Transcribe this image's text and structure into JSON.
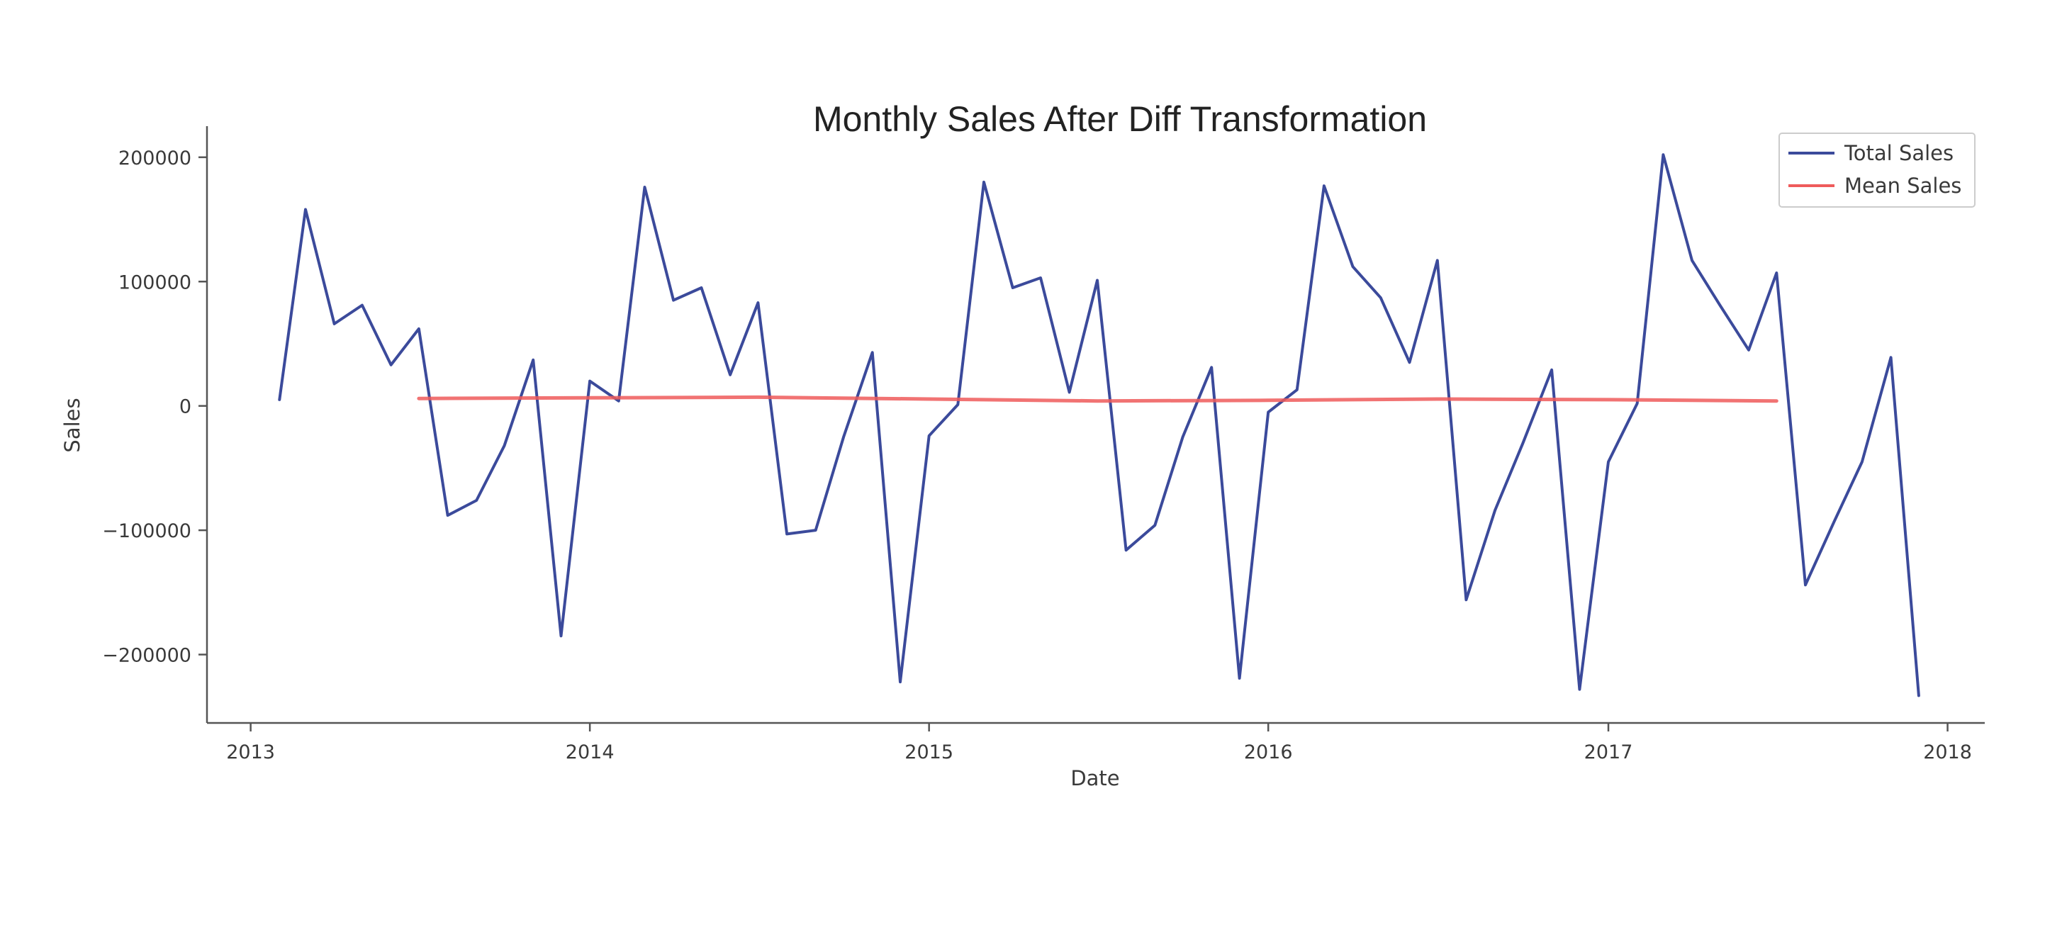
{
  "chart_data": {
    "type": "line",
    "title": "Monthly Sales After Diff Transformation",
    "xlabel": "Date",
    "ylabel": "Sales",
    "x_ticks": [
      "2013",
      "2014",
      "2015",
      "2016",
      "2017",
      "2018"
    ],
    "y_ticks": [
      "200000",
      "100000",
      "0",
      "−100000",
      "−200000"
    ],
    "y_tick_values": [
      200000,
      100000,
      0,
      -100000,
      -200000
    ],
    "ylim": [
      -255000,
      225000
    ],
    "xlim": [
      "2012-11-15",
      "2018-02-10"
    ],
    "grid": false,
    "legend_position": "top-right",
    "series": [
      {
        "name": "Total Sales",
        "color": "#3b4a9b",
        "points": [
          [
            "2013-02-01",
            5000
          ],
          [
            "2013-03-01",
            158000
          ],
          [
            "2013-04-01",
            66000
          ],
          [
            "2013-05-01",
            81000
          ],
          [
            "2013-06-01",
            33000
          ],
          [
            "2013-07-01",
            62000
          ],
          [
            "2013-08-01",
            -88000
          ],
          [
            "2013-09-01",
            -76000
          ],
          [
            "2013-10-01",
            -32000
          ],
          [
            "2013-11-01",
            37000
          ],
          [
            "2013-12-01",
            -185000
          ],
          [
            "2014-01-01",
            20000
          ],
          [
            "2014-02-01",
            4000
          ],
          [
            "2014-03-01",
            176000
          ],
          [
            "2014-04-01",
            85000
          ],
          [
            "2014-05-01",
            95000
          ],
          [
            "2014-06-01",
            25000
          ],
          [
            "2014-07-01",
            83000
          ],
          [
            "2014-08-01",
            -103000
          ],
          [
            "2014-09-01",
            -100000
          ],
          [
            "2014-10-01",
            -25000
          ],
          [
            "2014-11-01",
            43000
          ],
          [
            "2014-12-01",
            -222000
          ],
          [
            "2015-01-01",
            -24000
          ],
          [
            "2015-02-01",
            1000
          ],
          [
            "2015-03-01",
            180000
          ],
          [
            "2015-04-01",
            95000
          ],
          [
            "2015-05-01",
            103000
          ],
          [
            "2015-06-01",
            11000
          ],
          [
            "2015-07-01",
            101000
          ],
          [
            "2015-08-01",
            -116000
          ],
          [
            "2015-09-01",
            -96000
          ],
          [
            "2015-10-01",
            -25000
          ],
          [
            "2015-11-01",
            31000
          ],
          [
            "2015-12-01",
            -219000
          ],
          [
            "2016-01-01",
            -5000
          ],
          [
            "2016-02-01",
            13000
          ],
          [
            "2016-03-01",
            177000
          ],
          [
            "2016-04-01",
            112000
          ],
          [
            "2016-05-01",
            87000
          ],
          [
            "2016-06-01",
            35000
          ],
          [
            "2016-07-01",
            117000
          ],
          [
            "2016-08-01",
            -156000
          ],
          [
            "2016-09-01",
            -84000
          ],
          [
            "2016-10-01",
            -30000
          ],
          [
            "2016-11-01",
            29000
          ],
          [
            "2016-12-01",
            -228000
          ],
          [
            "2017-01-01",
            -45000
          ],
          [
            "2017-02-01",
            2000
          ],
          [
            "2017-03-01",
            202000
          ],
          [
            "2017-04-01",
            117000
          ],
          [
            "2017-05-01",
            81000
          ],
          [
            "2017-06-01",
            45000
          ],
          [
            "2017-07-01",
            107000
          ],
          [
            "2017-08-01",
            -144000
          ],
          [
            "2017-09-01",
            -93000
          ],
          [
            "2017-10-01",
            -45000
          ],
          [
            "2017-11-01",
            39000
          ],
          [
            "2017-12-01",
            -233000
          ]
        ]
      },
      {
        "name": "Mean Sales",
        "color": "#ef5b5b",
        "points": [
          [
            "2013-07-01",
            6000
          ],
          [
            "2014-01-01",
            6500
          ],
          [
            "2014-07-01",
            7000
          ],
          [
            "2015-01-01",
            5500
          ],
          [
            "2015-07-01",
            4000
          ],
          [
            "2016-01-01",
            4500
          ],
          [
            "2016-07-01",
            5500
          ],
          [
            "2017-01-01",
            5000
          ],
          [
            "2017-07-01",
            4000
          ]
        ]
      }
    ]
  }
}
